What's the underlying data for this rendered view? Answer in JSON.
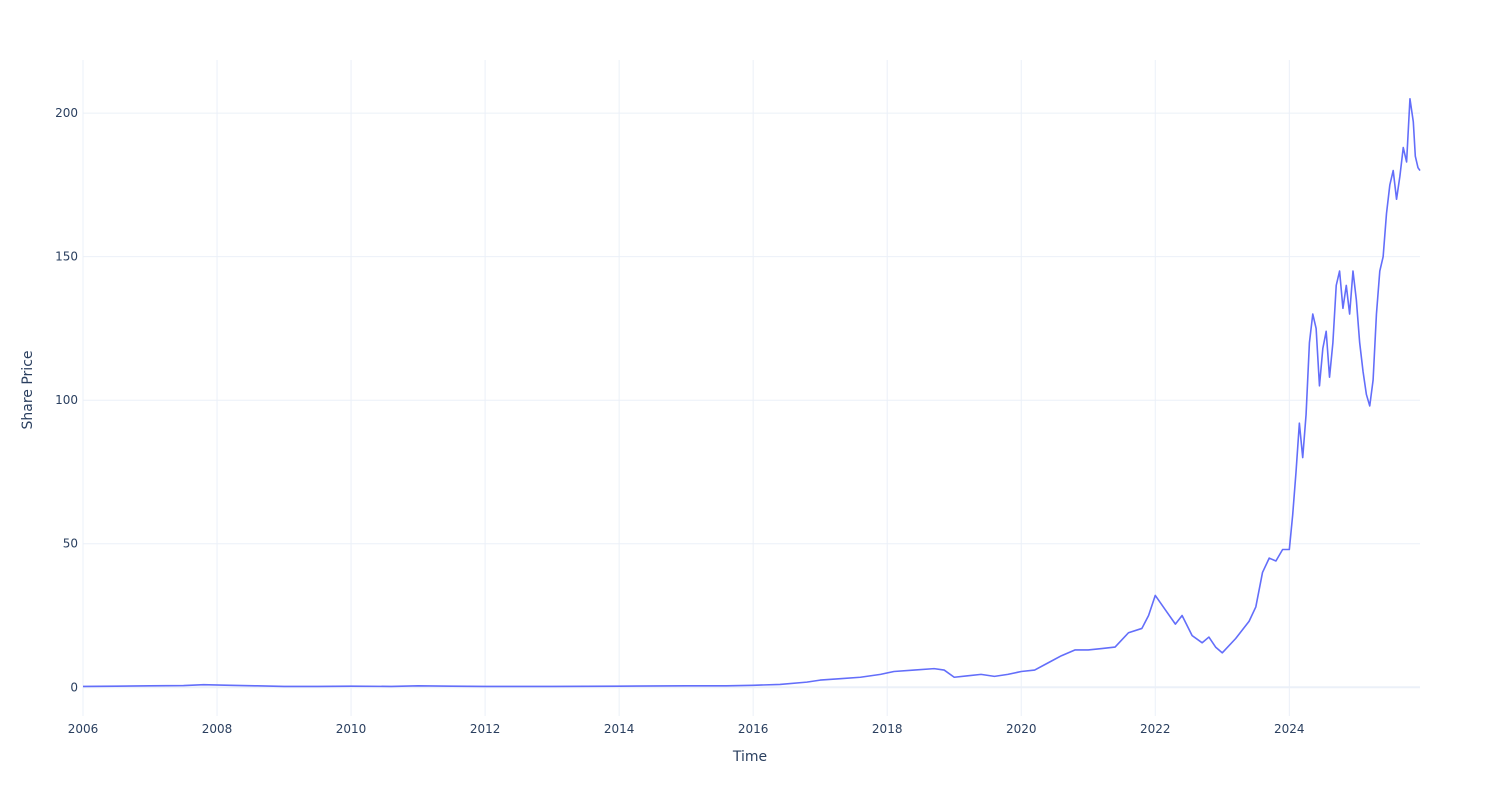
{
  "chart_data": {
    "type": "line",
    "title": "",
    "xlabel": "Time",
    "ylabel": "Share Price",
    "x_tick_labels": [
      "2006",
      "2008",
      "2010",
      "2012",
      "2014",
      "2016",
      "2018",
      "2020",
      "2022",
      "2024"
    ],
    "x_ticks": [
      2006,
      2008,
      2010,
      2012,
      2014,
      2016,
      2018,
      2020,
      2022,
      2024
    ],
    "y_tick_labels": [
      "0",
      "50",
      "100",
      "150",
      "200"
    ],
    "y_ticks": [
      0,
      50,
      100,
      150,
      200
    ],
    "xlim": [
      2006.0,
      2025.95
    ],
    "ylim": [
      -10.0,
      218.5
    ],
    "grid": true,
    "legend": "none",
    "series": [
      {
        "color": "#636efa",
        "x": [
          2006.0,
          2006.5,
          2007.0,
          2007.5,
          2007.8,
          2008.2,
          2008.6,
          2009.0,
          2009.5,
          2010.0,
          2010.6,
          2011.0,
          2011.5,
          2012.0,
          2013.0,
          2014.0,
          2015.0,
          2015.6,
          2016.0,
          2016.4,
          2016.8,
          2017.0,
          2017.3,
          2017.6,
          2017.9,
          2018.1,
          2018.4,
          2018.7,
          2018.85,
          2019.0,
          2019.2,
          2019.4,
          2019.6,
          2019.8,
          2020.0,
          2020.2,
          2020.4,
          2020.6,
          2020.8,
          2021.0,
          2021.2,
          2021.4,
          2021.6,
          2021.8,
          2021.9,
          2022.0,
          2022.15,
          2022.3,
          2022.4,
          2022.55,
          2022.7,
          2022.8,
          2022.9,
          2023.0,
          2023.2,
          2023.4,
          2023.5,
          2023.6,
          2023.7,
          2023.8,
          2023.9,
          2024.0,
          2024.05,
          2024.1,
          2024.15,
          2024.2,
          2024.25,
          2024.3,
          2024.35,
          2024.4,
          2024.45,
          2024.5,
          2024.55,
          2024.6,
          2024.65,
          2024.7,
          2024.75,
          2024.8,
          2024.85,
          2024.9,
          2024.95,
          2025.0,
          2025.05,
          2025.1,
          2025.15,
          2025.2,
          2025.25,
          2025.3,
          2025.35,
          2025.4,
          2025.45,
          2025.5,
          2025.55,
          2025.6,
          2025.65,
          2025.7,
          2025.75,
          2025.8,
          2025.85,
          2025.88,
          2025.92,
          2025.95
        ],
        "y": [
          0.3,
          0.4,
          0.5,
          0.6,
          0.9,
          0.7,
          0.5,
          0.3,
          0.3,
          0.4,
          0.3,
          0.5,
          0.4,
          0.3,
          0.3,
          0.4,
          0.5,
          0.5,
          0.7,
          1.0,
          1.8,
          2.5,
          3.0,
          3.5,
          4.5,
          5.5,
          6.0,
          6.5,
          6.0,
          3.5,
          4.0,
          4.5,
          3.8,
          4.5,
          5.5,
          6.0,
          8.5,
          11.0,
          13.0,
          13.0,
          13.5,
          14.0,
          19.0,
          20.5,
          25.0,
          32.0,
          27.0,
          22.0,
          25.0,
          18.0,
          15.5,
          17.5,
          14.0,
          12.0,
          17.0,
          23.0,
          28.0,
          40.0,
          45.0,
          44.0,
          48.0,
          48.0,
          60.0,
          75.0,
          92.0,
          80.0,
          95.0,
          120.0,
          130.0,
          125.0,
          105.0,
          118.0,
          124.0,
          108.0,
          120.0,
          140.0,
          145.0,
          132.0,
          140.0,
          130.0,
          145.0,
          135.0,
          120.0,
          110.0,
          102.0,
          98.0,
          107.0,
          130.0,
          145.0,
          150.0,
          165.0,
          175.0,
          180.0,
          170.0,
          178.0,
          188.0,
          183.0,
          205.0,
          197.0,
          185.0,
          181.0,
          180.0
        ]
      }
    ]
  }
}
